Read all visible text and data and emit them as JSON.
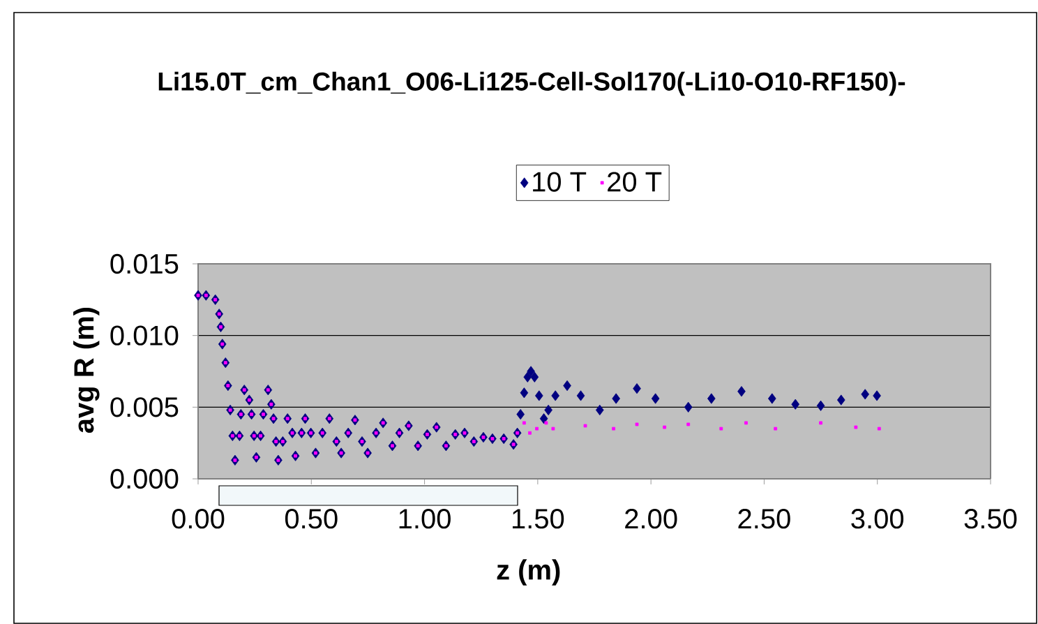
{
  "chart_data": {
    "type": "scatter",
    "title": "Li15.0T_cm_Chan1_O06-Li125-Cell-Sol170(-Li10-O10-RF150)-",
    "xlabel": "z (m)",
    "ylabel": "avg R (m)",
    "xlim": [
      0,
      3.5
    ],
    "ylim": [
      0,
      0.015
    ],
    "xticks": [
      {
        "value": 0,
        "label": "0.00"
      },
      {
        "value": 0.5,
        "label": "0.50"
      },
      {
        "value": 1,
        "label": "1.00"
      },
      {
        "value": 1.5,
        "label": "1.50"
      },
      {
        "value": 2,
        "label": "2.00"
      },
      {
        "value": 2.5,
        "label": "2.50"
      },
      {
        "value": 3,
        "label": "3.00"
      },
      {
        "value": 3.5,
        "label": "3.50"
      }
    ],
    "yticks": [
      {
        "value": 0,
        "label": "0.000"
      },
      {
        "value": 0.005,
        "label": "0.005"
      },
      {
        "value": 0.01,
        "label": "0.010"
      },
      {
        "value": 0.015,
        "label": "0.015"
      }
    ],
    "grid": "y",
    "legend": "top",
    "series": [
      {
        "name": "10 T",
        "color": "#000080",
        "marker": "diamond",
        "x": [
          0,
          0.035,
          0.076,
          0.093,
          0.1,
          0.107,
          0.121,
          0.132,
          0.142,
          0.152,
          0.163,
          0.183,
          0.189,
          0.204,
          0.226,
          0.236,
          0.247,
          0.257,
          0.276,
          0.288,
          0.309,
          0.323,
          0.333,
          0.344,
          0.354,
          0.374,
          0.395,
          0.416,
          0.43,
          0.457,
          0.473,
          0.498,
          0.519,
          0.549,
          0.58,
          0.611,
          0.632,
          0.663,
          0.693,
          0.724,
          0.749,
          0.786,
          0.817,
          0.858,
          0.889,
          0.93,
          0.971,
          1.012,
          1.053,
          1.095,
          1.136,
          1.177,
          1.218,
          1.26,
          1.3,
          1.35,
          1.393,
          1.41,
          1.424,
          1.44,
          1.455,
          1.47,
          1.486,
          1.506,
          1.527,
          1.547,
          1.578,
          1.63,
          1.69,
          1.774,
          1.846,
          1.938,
          2.02,
          2.165,
          2.267,
          2.4,
          2.535,
          2.638,
          2.75,
          2.84,
          2.946,
          2.998
        ],
        "values": [
          0.0128,
          0.0128,
          0.0125,
          0.0115,
          0.0106,
          0.0094,
          0.0081,
          0.0065,
          0.0048,
          0.003,
          0.0013,
          0.003,
          0.0045,
          0.0062,
          0.0055,
          0.0045,
          0.003,
          0.0015,
          0.003,
          0.0045,
          0.0062,
          0.0052,
          0.0042,
          0.0026,
          0.0013,
          0.0026,
          0.0042,
          0.0032,
          0.0016,
          0.0032,
          0.0042,
          0.0032,
          0.0018,
          0.0032,
          0.0042,
          0.0026,
          0.0018,
          0.0032,
          0.0041,
          0.0026,
          0.0018,
          0.0032,
          0.0039,
          0.0023,
          0.0032,
          0.0037,
          0.0023,
          0.0031,
          0.0036,
          0.0023,
          0.0031,
          0.0032,
          0.0026,
          0.0029,
          0.0028,
          0.0028,
          0.0024,
          0.0032,
          0.0045,
          0.006,
          0.0071,
          0.0075,
          0.0071,
          0.0058,
          0.0042,
          0.0048,
          0.0058,
          0.0065,
          0.0058,
          0.0048,
          0.0056,
          0.0063,
          0.0056,
          0.005,
          0.0056,
          0.0061,
          0.0056,
          0.0052,
          0.0051,
          0.0055,
          0.0059,
          0.0058
        ]
      },
      {
        "name": "20 T",
        "color": "#ff00ff",
        "marker": "square",
        "x": [
          0,
          0.035,
          0.076,
          0.093,
          0.1,
          0.107,
          0.121,
          0.132,
          0.142,
          0.152,
          0.163,
          0.183,
          0.189,
          0.204,
          0.226,
          0.236,
          0.247,
          0.257,
          0.276,
          0.288,
          0.309,
          0.323,
          0.333,
          0.344,
          0.354,
          0.374,
          0.395,
          0.416,
          0.43,
          0.457,
          0.473,
          0.498,
          0.519,
          0.549,
          0.58,
          0.611,
          0.632,
          0.663,
          0.693,
          0.724,
          0.749,
          0.786,
          0.817,
          0.858,
          0.889,
          0.93,
          0.971,
          1.012,
          1.053,
          1.095,
          1.136,
          1.177,
          1.218,
          1.26,
          1.3,
          1.35,
          1.393,
          1.41,
          1.44,
          1.465,
          1.496,
          1.537,
          1.568,
          1.71,
          1.835,
          1.938,
          2.06,
          2.165,
          2.31,
          2.42,
          2.55,
          2.75,
          2.905,
          3.008
        ],
        "values": [
          0.0128,
          0.0128,
          0.0125,
          0.0115,
          0.0106,
          0.0094,
          0.0081,
          0.0065,
          0.0048,
          0.003,
          0.0013,
          0.003,
          0.0045,
          0.0062,
          0.0055,
          0.0045,
          0.003,
          0.0015,
          0.003,
          0.0045,
          0.0062,
          0.0052,
          0.0042,
          0.0026,
          0.0013,
          0.0026,
          0.0042,
          0.0032,
          0.0016,
          0.0032,
          0.0042,
          0.0032,
          0.0018,
          0.0032,
          0.0042,
          0.0026,
          0.0018,
          0.0032,
          0.0041,
          0.0026,
          0.0018,
          0.0032,
          0.0039,
          0.0023,
          0.0032,
          0.0037,
          0.0023,
          0.0031,
          0.0036,
          0.0023,
          0.0031,
          0.0032,
          0.0026,
          0.0029,
          0.0028,
          0.0028,
          0.0024,
          0.0032,
          0.0039,
          0.0032,
          0.0035,
          0.0039,
          0.0035,
          0.0037,
          0.0035,
          0.0038,
          0.0036,
          0.0038,
          0.0035,
          0.0039,
          0.0035,
          0.0039,
          0.0036,
          0.0035
        ]
      }
    ]
  }
}
